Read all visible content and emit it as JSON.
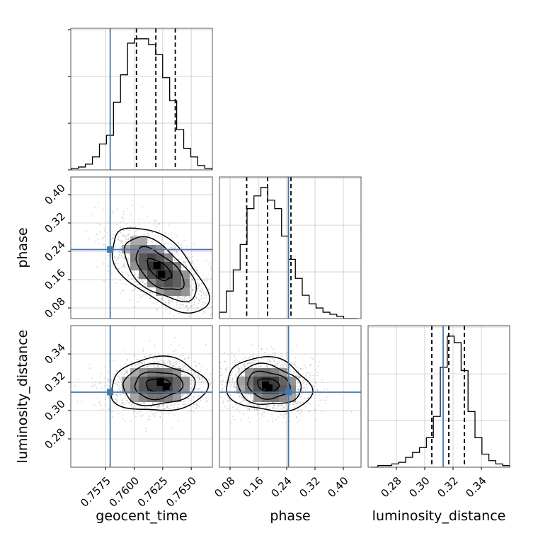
{
  "colors": {
    "truth": "#4477aa",
    "hist": "#000000",
    "grid": "#c8c8c8",
    "frame": "#555555"
  },
  "chart_data": {
    "type": "corner",
    "parameters": [
      "geocent_time",
      "phase",
      "luminosity_distance"
    ],
    "truths": {
      "geocent_time": 0.7579,
      "phase": 0.245,
      "luminosity_distance": 0.313
    },
    "axes": {
      "geocent_time": {
        "range": [
          0.75445,
          0.76685
        ],
        "ticks": [
          0.7575,
          0.76,
          0.7625,
          0.765
        ],
        "tick_labels": [
          "0.7575",
          "0.7600",
          "0.7625",
          "0.7650"
        ]
      },
      "phase": {
        "range": [
          0.05,
          0.45
        ],
        "ticks": [
          0.08,
          0.16,
          0.24,
          0.32,
          0.4
        ],
        "tick_labels": [
          "0.08",
          "0.16",
          "0.24",
          "0.32",
          "0.40"
        ]
      },
      "luminosity_distance": {
        "range": [
          0.26,
          0.36
        ],
        "ticks": [
          0.28,
          0.3,
          0.32,
          0.34
        ],
        "tick_labels": [
          "0.28",
          "0.30",
          "0.32",
          "0.34"
        ]
      }
    },
    "hist_1d": {
      "geocent_time": {
        "edges_range": [
          0.7545,
          0.7668
        ],
        "quantiles": [
          0.7602,
          0.7619,
          0.7636
        ],
        "counts": [
          1,
          2,
          4,
          9,
          18,
          24,
          47,
          66,
          88,
          91,
          91,
          87,
          80,
          64,
          48,
          28,
          15,
          9,
          3,
          1
        ]
      },
      "phase": {
        "edges_range": [
          0.05,
          0.44
        ],
        "quantiles": [
          0.127,
          0.186,
          0.252
        ],
        "counts": [
          3,
          13,
          23,
          35,
          52,
          58,
          62,
          56,
          52,
          39,
          28,
          19,
          11,
          7,
          5,
          3,
          2,
          1,
          0,
          0
        ]
      },
      "luminosity_distance": {
        "edges_range": [
          0.262,
          0.36
        ],
        "quantiles": [
          0.305,
          0.317,
          0.328
        ],
        "counts": [
          0,
          1,
          1,
          2,
          3,
          6,
          9,
          12,
          18,
          31,
          61,
          80,
          76,
          59,
          34,
          18,
          8,
          4,
          2,
          1
        ]
      }
    },
    "hist_2d": [
      {
        "x": "geocent_time",
        "y": "phase",
        "center": [
          0.7622,
          0.188
        ],
        "sd": [
          0.0021,
          0.06
        ],
        "rho": -0.6,
        "modes": [
          [
            0.762,
            0.2
          ],
          [
            0.7624,
            0.175
          ]
        ],
        "contour_levels": [
          0.5,
          1.0,
          1.5,
          2.0
        ]
      },
      {
        "x": "geocent_time",
        "y": "luminosity_distance",
        "center": [
          0.7621,
          0.318
        ],
        "sd": [
          0.0021,
          0.0095
        ],
        "rho": 0.05,
        "modes": [
          [
            0.7623,
            0.32
          ],
          [
            0.7628,
            0.317
          ]
        ],
        "contour_levels": [
          0.5,
          1.0,
          1.5,
          2.0
        ]
      },
      {
        "x": "phase",
        "y": "luminosity_distance",
        "center": [
          0.188,
          0.318
        ],
        "sd": [
          0.06,
          0.0095
        ],
        "rho": -0.15,
        "modes": [
          [
            0.18,
            0.318
          ],
          [
            0.19,
            0.316
          ]
        ],
        "contour_levels": [
          0.5,
          1.0,
          1.5,
          2.0
        ]
      }
    ],
    "xlabels": [
      "geocent_time",
      "phase",
      "luminosity_distance"
    ],
    "ylabels": [
      "",
      "phase",
      "luminosity_distance"
    ],
    "grid": true
  }
}
